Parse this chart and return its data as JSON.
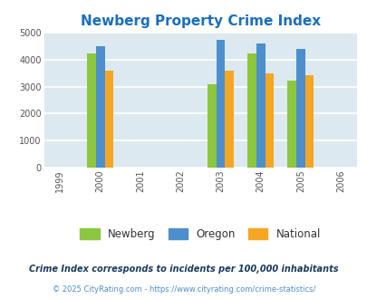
{
  "title": "Newberg Property Crime Index",
  "title_color": "#1a6fbb",
  "years": [
    2000,
    2003,
    2004,
    2005
  ],
  "x_ticks": [
    1999,
    2000,
    2001,
    2002,
    2003,
    2004,
    2005,
    2006
  ],
  "newberg": [
    4250,
    3100,
    4250,
    3230
  ],
  "oregon": [
    4500,
    4750,
    4620,
    4400
  ],
  "national": [
    3600,
    3600,
    3500,
    3440
  ],
  "colors": {
    "newberg": "#8dc63f",
    "oregon": "#4d8fcc",
    "national": "#f5a623"
  },
  "ylim": [
    0,
    5000
  ],
  "yticks": [
    0,
    1000,
    2000,
    3000,
    4000,
    5000
  ],
  "background_color": "#dce9f0",
  "grid_color": "#ffffff",
  "legend_labels": [
    "Newberg",
    "Oregon",
    "National"
  ],
  "footnote1": "Crime Index corresponds to incidents per 100,000 inhabitants",
  "footnote2": "© 2025 CityRating.com - https://www.cityrating.com/crime-statistics/",
  "footnote1_color": "#1a3a5c",
  "footnote2_color": "#4d8fcc",
  "bar_width": 0.22
}
